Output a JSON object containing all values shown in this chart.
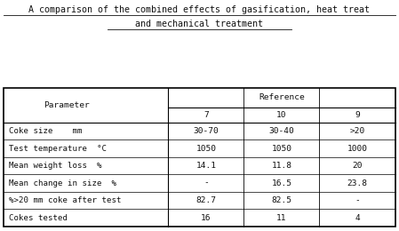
{
  "title_line1": "A comparison of the combined effects of gasification, heat treat",
  "title_line2": "and mechanical treatment",
  "col_header_main": "Reference",
  "col_header_sub": [
    "7",
    "10",
    "9"
  ],
  "row_labels": [
    "Parameter",
    "Coke size    mm",
    "Test temperature  °C",
    "Mean weight loss  %",
    "Mean change in size  %",
    "%>20 mm coke after test",
    "Cokes tested"
  ],
  "data": [
    [
      "30-70",
      "30-40",
      ">20"
    ],
    [
      "1050",
      "1050",
      "1000"
    ],
    [
      "14.1",
      "11.8",
      "20"
    ],
    [
      "-",
      "16.5",
      "23.8"
    ],
    [
      "82.7",
      "82.5",
      "-"
    ],
    [
      "16",
      "11",
      "4"
    ]
  ],
  "bg_color": "#ffffff",
  "text_color": "#111111",
  "title_fontsize": 7.2,
  "table_fontsize": 6.8
}
